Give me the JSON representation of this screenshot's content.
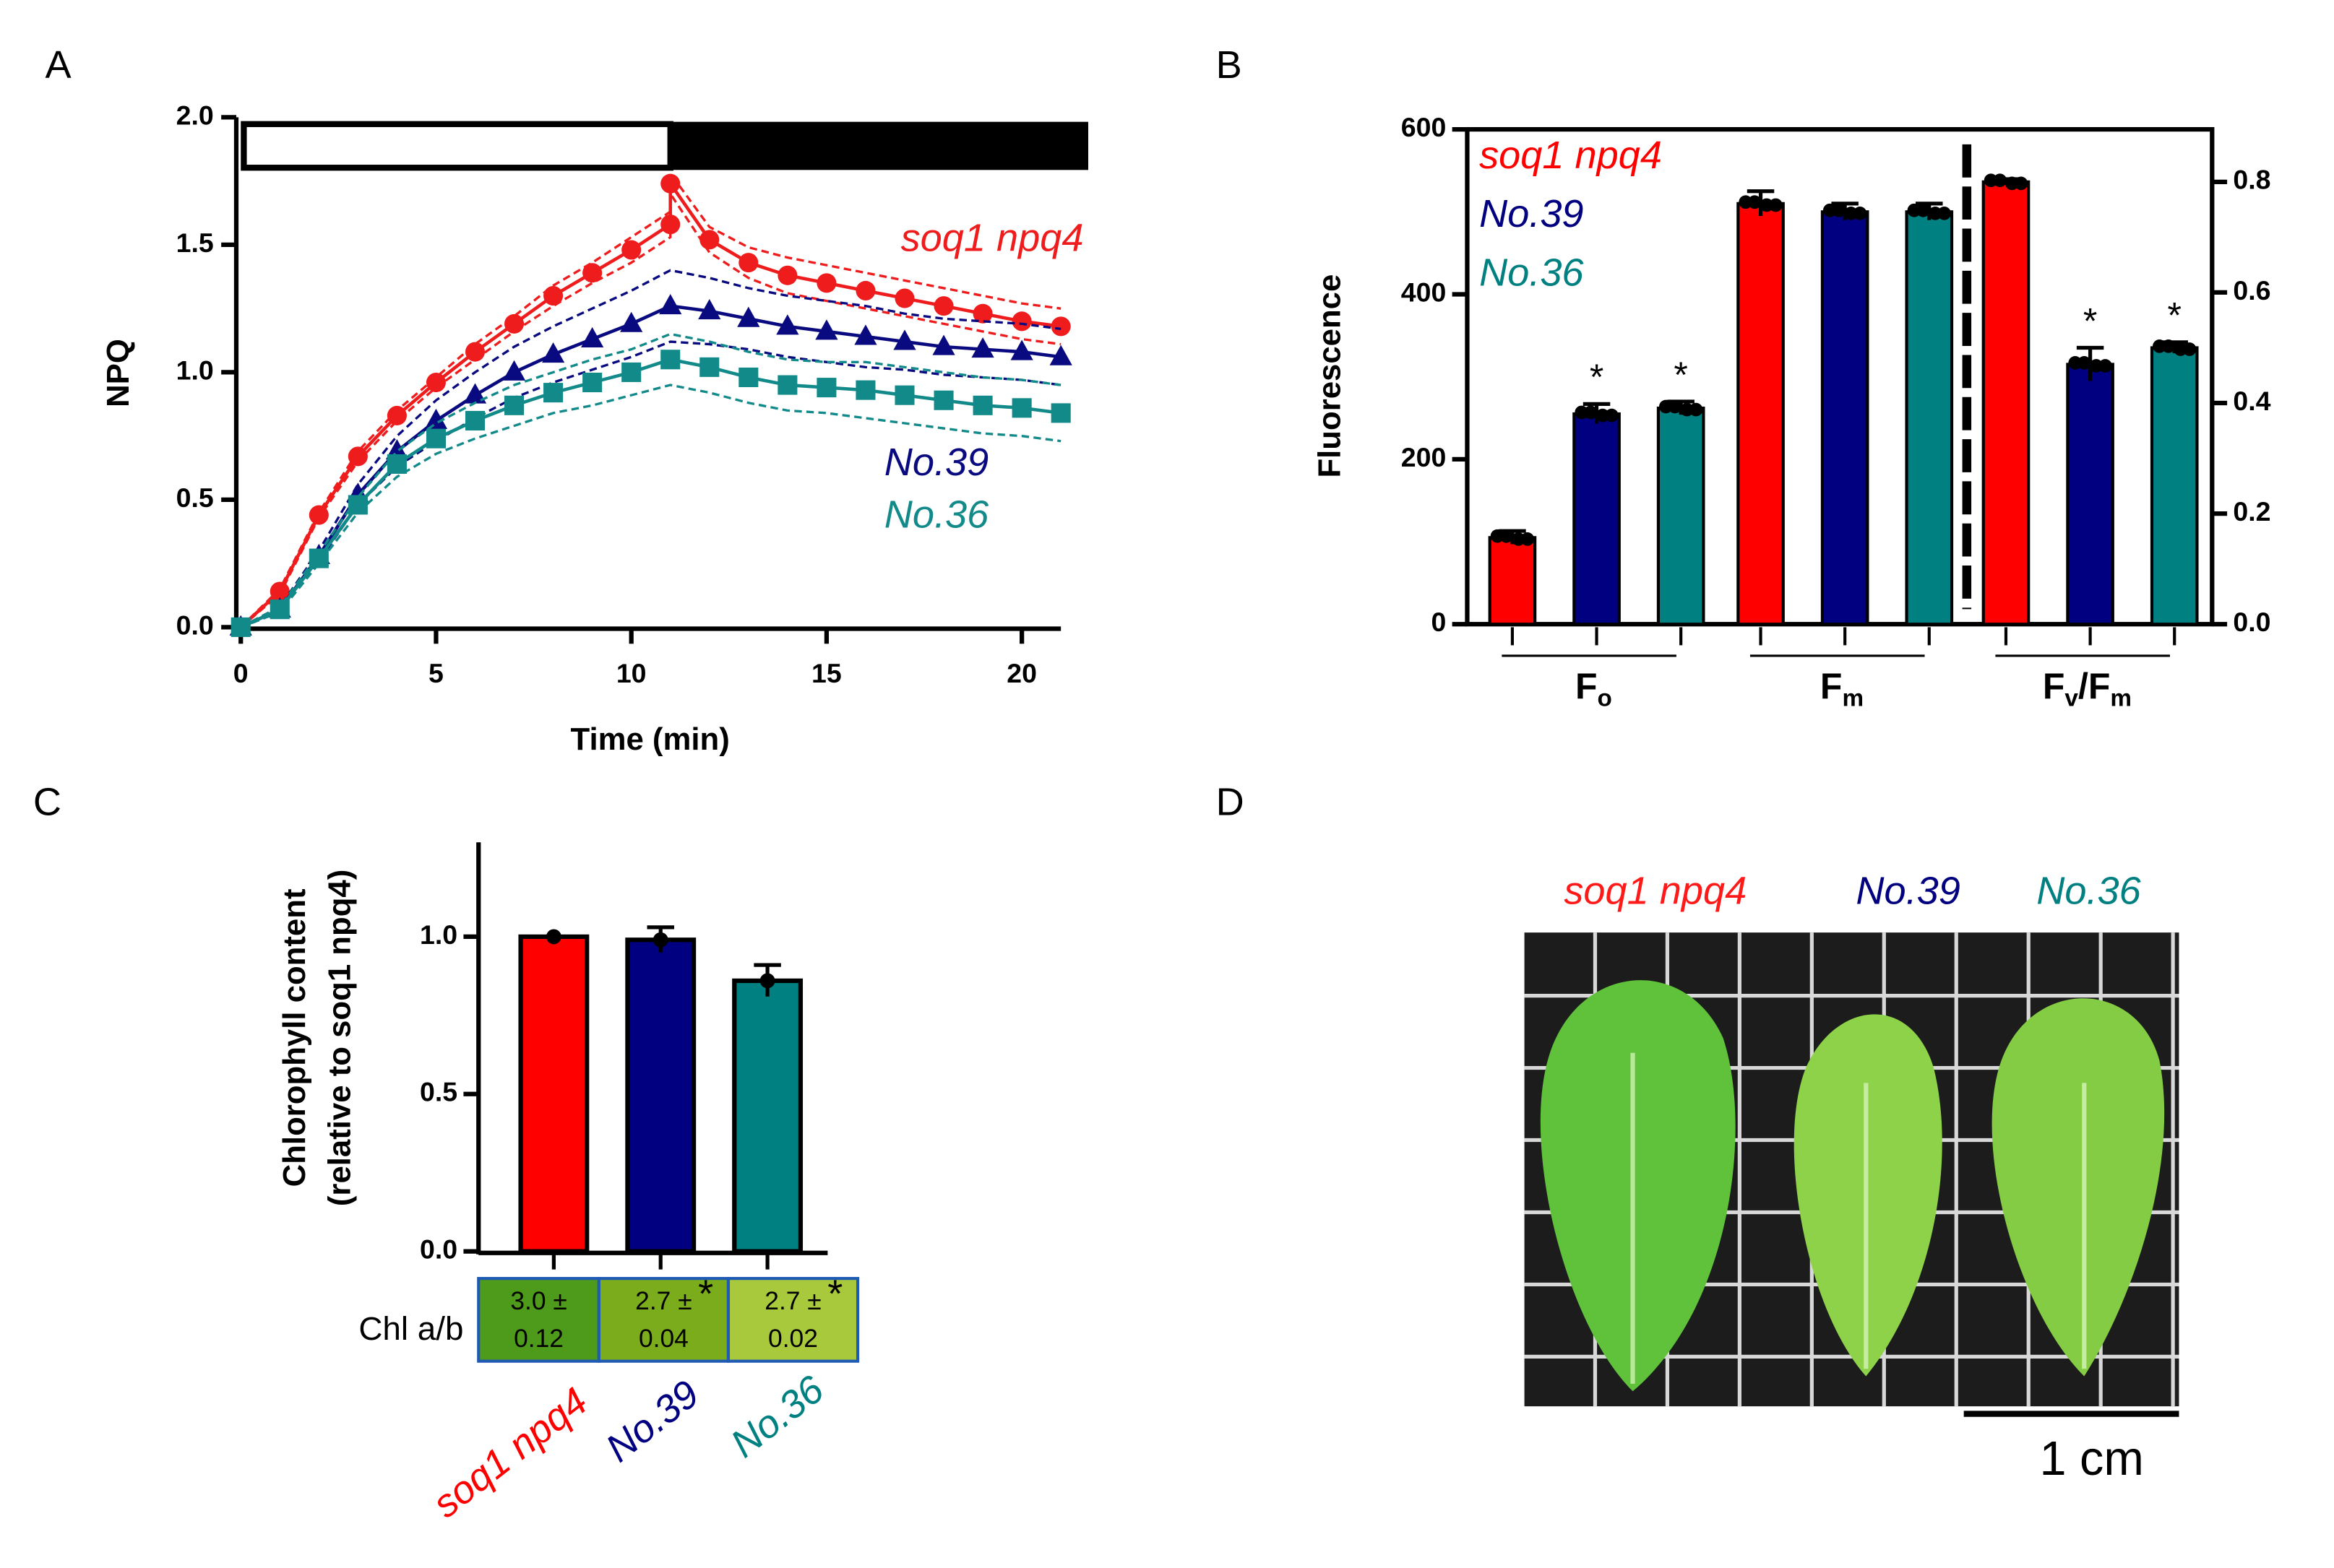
{
  "panel_labels": [
    "A",
    "B",
    "C",
    "D"
  ],
  "chart_data": [
    {
      "type": "line",
      "ylabel": "NPQ",
      "xlabel": "Time (min)",
      "xlim": [
        0,
        21
      ],
      "ylim": [
        0,
        2
      ],
      "xticks": [
        0,
        5,
        10,
        15,
        20
      ],
      "yticks": [
        {
          "value": 0,
          "label": "0.0"
        },
        {
          "value": 0.5,
          "label": "0.5"
        },
        {
          "value": 1,
          "label": "1.0"
        },
        {
          "value": 1.5,
          "label": "1.5"
        },
        {
          "value": 2,
          "label": "2.0"
        }
      ],
      "light_interval": [
        0,
        11
      ],
      "dark_interval": [
        11,
        21.7
      ],
      "series": [
        {
          "name": "soq1 npq4",
          "color": "#ee1c1c",
          "marker": "circle",
          "x": [
            0,
            1,
            2,
            3,
            4,
            5,
            6,
            7,
            8,
            9,
            10,
            11,
            11,
            12,
            13,
            14,
            15,
            16,
            17,
            18,
            19,
            20,
            21
          ],
          "values": [
            0,
            0.14,
            0.44,
            0.67,
            0.83,
            0.96,
            1.08,
            1.19,
            1.3,
            1.39,
            1.48,
            1.58,
            1.74,
            1.52,
            1.43,
            1.38,
            1.35,
            1.32,
            1.29,
            1.26,
            1.23,
            1.2,
            1.18
          ],
          "errors": [
            0,
            0.01,
            0.01,
            0.02,
            0.02,
            0.02,
            0.03,
            0.03,
            0.04,
            0.04,
            0.05,
            0.05,
            0.04,
            0.05,
            0.06,
            0.07,
            0.07,
            0.07,
            0.07,
            0.07,
            0.07,
            0.07,
            0.07
          ]
        },
        {
          "name": "No.39",
          "color": "#0a0a80",
          "marker": "triangle",
          "x": [
            0,
            1,
            2,
            3,
            4,
            5,
            6,
            7,
            8,
            9,
            10,
            11,
            12,
            13,
            14,
            15,
            16,
            17,
            18,
            19,
            20,
            21
          ],
          "values": [
            0,
            0.07,
            0.28,
            0.52,
            0.69,
            0.81,
            0.91,
            1,
            1.07,
            1.13,
            1.19,
            1.26,
            1.24,
            1.21,
            1.18,
            1.16,
            1.14,
            1.12,
            1.1,
            1.09,
            1.08,
            1.06
          ],
          "errors": [
            0,
            0.01,
            0.02,
            0.04,
            0.06,
            0.08,
            0.09,
            0.1,
            0.11,
            0.12,
            0.13,
            0.14,
            0.13,
            0.12,
            0.12,
            0.12,
            0.12,
            0.11,
            0.11,
            0.11,
            0.11,
            0.11
          ]
        },
        {
          "name": "No.36",
          "color": "#138a8a",
          "marker": "square",
          "x": [
            0,
            1,
            2,
            3,
            4,
            5,
            6,
            7,
            8,
            9,
            10,
            11,
            12,
            13,
            14,
            15,
            16,
            17,
            18,
            19,
            20,
            21
          ],
          "values": [
            0,
            0.07,
            0.27,
            0.48,
            0.64,
            0.74,
            0.81,
            0.87,
            0.92,
            0.96,
            1,
            1.05,
            1.02,
            0.98,
            0.95,
            0.94,
            0.93,
            0.91,
            0.89,
            0.87,
            0.86,
            0.84
          ],
          "errors": [
            0,
            0.01,
            0.02,
            0.03,
            0.05,
            0.06,
            0.07,
            0.08,
            0.08,
            0.09,
            0.09,
            0.1,
            0.1,
            0.1,
            0.1,
            0.1,
            0.11,
            0.11,
            0.11,
            0.11,
            0.11,
            0.11
          ]
        }
      ]
    },
    {
      "type": "bar",
      "ylabel": "Fluorescence",
      "ylim": [
        0,
        600
      ],
      "yticks": [
        0,
        200,
        400,
        600
      ],
      "y2lim": [
        0,
        0.895
      ],
      "y2ticks": [
        {
          "value": 0,
          "label": "0.0"
        },
        {
          "value": 0.2,
          "label": "0.2"
        },
        {
          "value": 0.4,
          "label": "0.4"
        },
        {
          "value": 0.6,
          "label": "0.6"
        },
        {
          "value": 0.8,
          "label": "0.8"
        }
      ],
      "categories": [
        [
          "F",
          "o"
        ],
        [
          "F",
          "m"
        ],
        [
          "F",
          "v",
          "/F",
          "m"
        ]
      ],
      "category_axis": [
        "y",
        "y",
        "y2"
      ],
      "series": [
        {
          "name": "soq1 npq4",
          "color": "#ff0000",
          "values": [
            105,
            510,
            0.8
          ],
          "errors": [
            8,
            15,
            0.005
          ],
          "significance": [
            null,
            null,
            null
          ]
        },
        {
          "name": "No.39",
          "color": "#000080",
          "values": [
            255,
            500,
            0.47
          ],
          "errors": [
            12,
            10,
            0.03
          ],
          "significance": [
            "*",
            null,
            "*"
          ]
        },
        {
          "name": "No.36",
          "color": "#008080",
          "values": [
            262,
            500,
            0.5
          ],
          "errors": [
            8,
            10,
            0.01
          ],
          "significance": [
            "*",
            null,
            "*"
          ]
        }
      ]
    },
    {
      "type": "bar",
      "ylabel": [
        "Chlorophyll content",
        "(relative to soq1 npq4)"
      ],
      "ylim": [
        0,
        1.3
      ],
      "yticks": [
        {
          "value": 0,
          "label": "0.0"
        },
        {
          "value": 0.5,
          "label": "0.5"
        },
        {
          "value": 1,
          "label": "1.0"
        }
      ],
      "categories": [
        "soq1 npq4",
        "No.39",
        "No.36"
      ],
      "colors": [
        "#ff0000",
        "#000080",
        "#008080"
      ],
      "values": [
        1,
        0.99,
        0.86
      ],
      "errors": [
        0,
        0.04,
        0.05
      ],
      "table": {
        "label": "Chl a/b",
        "cells": [
          [
            "3.0 ±",
            "0.12"
          ],
          [
            "2.7 ±",
            "0.04"
          ],
          [
            "2.7 ±",
            "0.02"
          ]
        ],
        "significance": [
          null,
          "*",
          "*"
        ],
        "colors": [
          "#4e9a1a",
          "#7aac1c",
          "#a9c93c"
        ]
      }
    }
  ],
  "photo": {
    "labels": [
      {
        "text": "soq1 npq4",
        "color": "#ff1a1a"
      },
      {
        "text": "No.39",
        "color": "#000080"
      },
      {
        "text": "No.36",
        "color": "#008080"
      }
    ],
    "scale_bar": "1 cm"
  }
}
